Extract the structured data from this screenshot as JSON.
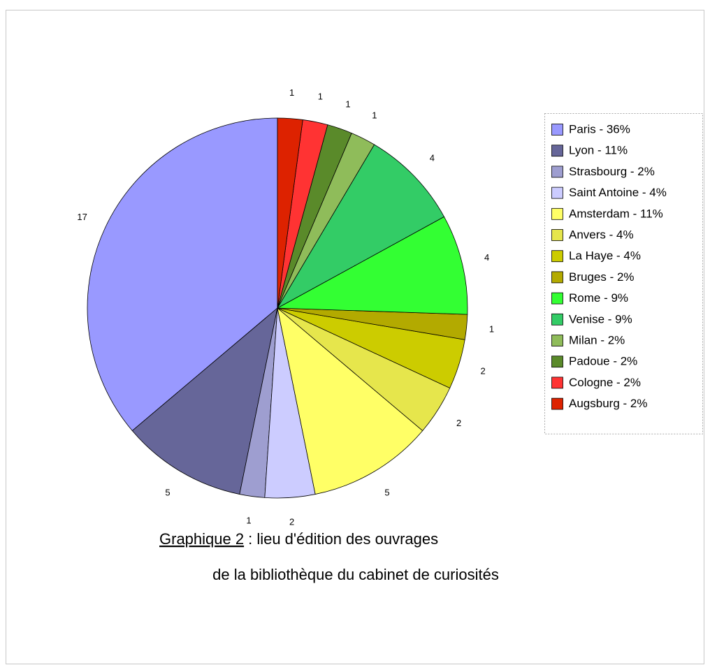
{
  "chart_data": {
    "type": "pie",
    "title_prefix": "Graphique 2",
    "title": ": lieu d'édition des ouvrages",
    "subtitle": "de la bibliothèque du cabinet de curiosités",
    "categories": [
      "Paris - 36%",
      "Lyon - 11%",
      "Strasbourg - 2%",
      "Saint Antoine - 4%",
      "Amsterdam - 11%",
      "Anvers - 4%",
      "La Haye - 4%",
      "Bruges - 2%",
      "Rome - 9%",
      "Venise - 9%",
      "Milan - 2%",
      "Padoue - 2%",
      "Cologne - 2%",
      "Augsburg - 2%"
    ],
    "values": [
      17,
      5,
      1,
      2,
      5,
      2,
      2,
      1,
      4,
      4,
      1,
      1,
      1,
      1
    ],
    "colors": [
      "#9999ff",
      "#666699",
      "#9e9ed0",
      "#ccccff",
      "#ffff66",
      "#e6e64c",
      "#cccc00",
      "#b3aa00",
      "#33ff33",
      "#33cc66",
      "#8fbc5a",
      "#5a8a2a",
      "#ff3333",
      "#dd2200"
    ],
    "direction": "counterclockwise",
    "legend": "right"
  }
}
